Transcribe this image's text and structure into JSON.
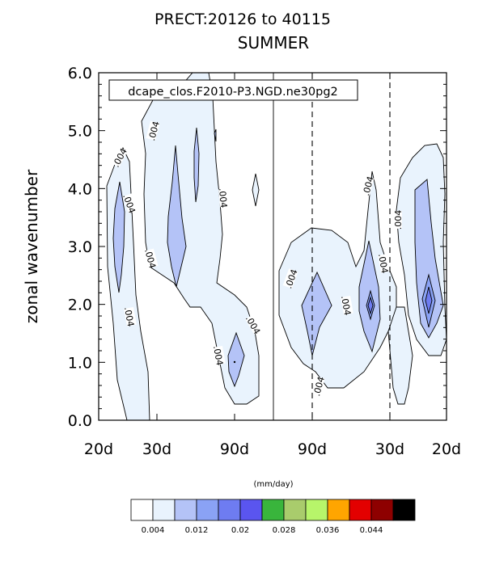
{
  "chart_data": {
    "type": "contour",
    "title": "PRECT:20126 to 40115",
    "subtitle": "SUMMER",
    "legend_label": "dcape_clos.F2010-P3.NGD.ne30pg2",
    "ylabel": "zonal wavenumber",
    "ylim": [
      0,
      6
    ],
    "yticks": [
      "0.0",
      "1.0",
      "2.0",
      "3.0",
      "4.0",
      "5.0",
      "6.0"
    ],
    "xticks": [
      "20d",
      "30d",
      "90d",
      "90d",
      "30d",
      "20d"
    ],
    "contour_labels": [
      ".004",
      ".004",
      ".004",
      ".004",
      ".004",
      ".004",
      ".004",
      ".004",
      ".004",
      ".004",
      ".004",
      ".004",
      ".004",
      ".004"
    ],
    "colorbar": {
      "units": "(mm/day)",
      "labels": [
        "0.004",
        "0.012",
        "0.02",
        "0.028",
        "0.036",
        "0.044"
      ],
      "colors": [
        "#ffffff",
        "#e9f3fd",
        "#b4c3f7",
        "#8aa2f5",
        "#6e7cf1",
        "#5a55ef",
        "#39b53c",
        "#a9cc6c",
        "#b7f56a",
        "#ffa500",
        "#e30000",
        "#8e0000",
        "#000000"
      ]
    }
  }
}
